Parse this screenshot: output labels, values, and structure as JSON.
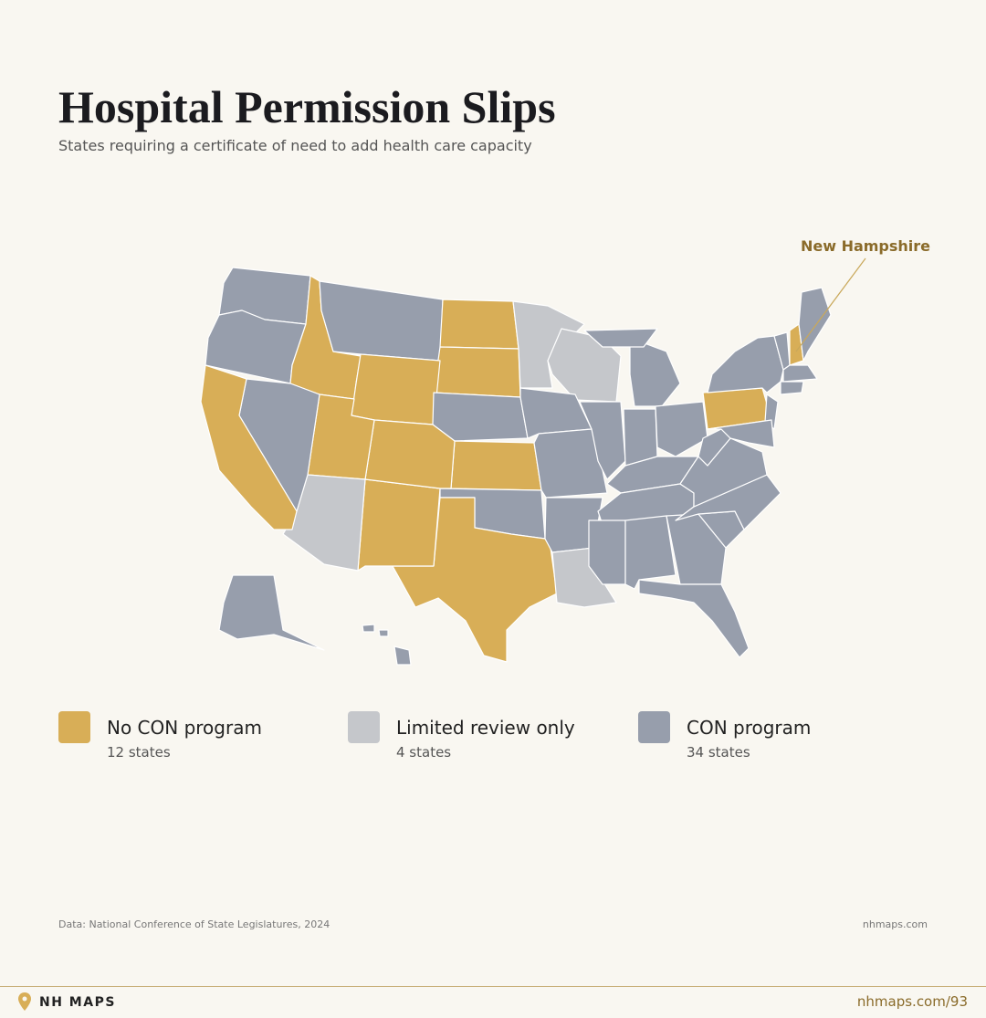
{
  "header": {
    "title": "Hospital Permission Slips",
    "subtitle": "States requiring a certificate of need to add health care capacity"
  },
  "map": {
    "annotation": "New Hampshire",
    "legend": [
      {
        "label": "No CON program",
        "count": "12 states",
        "color": "#d8ae57"
      },
      {
        "label": "Limited review only",
        "count": "4 states",
        "color": "#c5c7cb"
      },
      {
        "label": "CON program",
        "count": "34 states",
        "color": "#979eac"
      }
    ]
  },
  "footer": {
    "source": "Data: National Conference of State Legislatures, 2024",
    "site": "nhmaps.com"
  },
  "brand": {
    "name": "NH MAPS",
    "link": "nhmaps.com/93"
  }
}
